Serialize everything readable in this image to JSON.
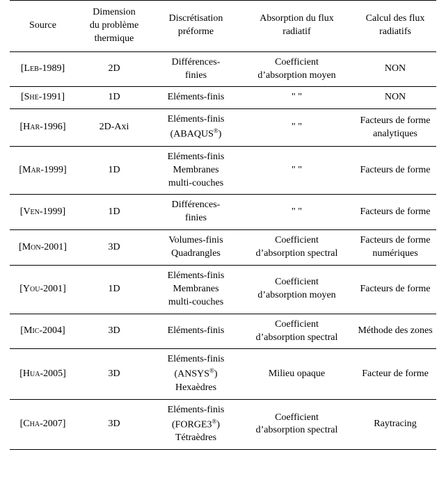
{
  "headers": {
    "source": "Source",
    "dimension_l1": "Dimension",
    "dimension_l2": "du problème",
    "dimension_l3": "thermique",
    "disc_l1": "Discrétisation",
    "disc_l2": "préforme",
    "abs_l1": "Absorption du flux",
    "abs_l2": "radiatif",
    "flux_l1": "Calcul des flux",
    "flux_l2": "radiatifs"
  },
  "rows": [
    {
      "src_open": "[",
      "src_sc": "Leb",
      "src_tail": "-1989]",
      "dim": "2D",
      "disc_lines": [
        "Différences-",
        "finies"
      ],
      "abs_lines": [
        "Coefficient",
        "d’absorption moyen"
      ],
      "flux_lines": [
        "NON"
      ]
    },
    {
      "src_open": "[",
      "src_sc": "She",
      "src_tail": "-1991]",
      "dim": "1D",
      "disc_lines": [
        "Eléments-finis"
      ],
      "abs_lines": [
        "\" \""
      ],
      "flux_lines": [
        "NON"
      ]
    },
    {
      "src_open": "[",
      "src_sc": "Har",
      "src_tail": "-1996]",
      "dim": "2D-Axi",
      "disc_lines": [
        "Eléments-finis",
        "(ABAQUS®)"
      ],
      "abs_lines": [
        "\" \""
      ],
      "flux_lines": [
        "Facteurs de forme",
        "analytiques"
      ]
    },
    {
      "src_open": "[",
      "src_sc": "Mar",
      "src_tail": "-1999]",
      "dim": "1D",
      "disc_lines": [
        "Eléments-finis",
        "Membranes",
        "multi-couches"
      ],
      "abs_lines": [
        "\" \""
      ],
      "flux_lines": [
        "Facteurs de forme"
      ]
    },
    {
      "src_open": "[",
      "src_sc": "Ven",
      "src_tail": "-1999]",
      "dim": "1D",
      "disc_lines": [
        "Différences-",
        "finies"
      ],
      "abs_lines": [
        "\" \""
      ],
      "flux_lines": [
        "Facteurs de forme"
      ]
    },
    {
      "src_open": "[",
      "src_sc": "Mon",
      "src_tail": "-2001]",
      "dim": "3D",
      "disc_lines": [
        "Volumes-finis",
        "Quadrangles"
      ],
      "abs_lines": [
        "Coefficient",
        "d’absorption spectral"
      ],
      "flux_lines": [
        "Facteurs de forme",
        "numériques"
      ]
    },
    {
      "src_open": "[",
      "src_sc": "You",
      "src_tail": "-2001]",
      "dim": "1D",
      "disc_lines": [
        "Eléments-finis",
        "Membranes",
        "multi-couches"
      ],
      "abs_lines": [
        "Coefficient",
        "d’absorption moyen"
      ],
      "flux_lines": [
        "Facteurs de forme"
      ]
    },
    {
      "src_open": "[",
      "src_sc": "Mic",
      "src_tail": "-2004]",
      "dim": "3D",
      "disc_lines": [
        "Eléments-finis"
      ],
      "abs_lines": [
        "Coefficient",
        "d’absorption spectral"
      ],
      "flux_lines": [
        "Méthode des zones"
      ]
    },
    {
      "src_open": "[",
      "src_sc": "Hua",
      "src_tail": "-2005]",
      "dim": "3D",
      "disc_lines": [
        "Eléments-finis",
        "(ANSYS®)",
        "Hexaèdres"
      ],
      "abs_lines": [
        "Milieu opaque"
      ],
      "flux_lines": [
        "Facteur de forme"
      ]
    },
    {
      "src_open": "[",
      "src_sc": "Cha",
      "src_tail": "-2007]",
      "dim": "3D",
      "disc_lines": [
        "Eléments-finis",
        "(FORGE3®)",
        "Tétraèdres"
      ],
      "abs_lines": [
        "Coefficient",
        "d’absorption spectral"
      ],
      "flux_lines": [
        "Raytracing"
      ]
    }
  ]
}
